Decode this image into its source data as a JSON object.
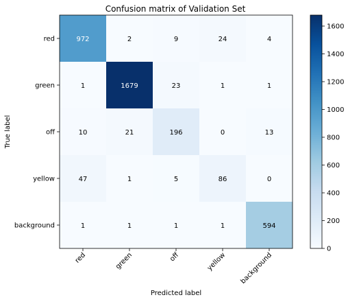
{
  "chart_data": {
    "type": "heatmap",
    "title": "Confusion matrix of Validation Set",
    "xlabel": "Predicted label",
    "ylabel": "True label",
    "x_categories": [
      "red",
      "green",
      "off",
      "yellow",
      "background"
    ],
    "y_categories": [
      "red",
      "green",
      "off",
      "yellow",
      "background"
    ],
    "values": [
      [
        972,
        2,
        9,
        24,
        4
      ],
      [
        1,
        1679,
        23,
        1,
        1
      ],
      [
        10,
        21,
        196,
        0,
        13
      ],
      [
        47,
        1,
        5,
        86,
        0
      ],
      [
        1,
        1,
        1,
        1,
        594
      ]
    ],
    "colormap": "Blues",
    "colorbar": {
      "min": 0,
      "max": 1679,
      "ticks": [
        0,
        200,
        400,
        600,
        800,
        1000,
        1200,
        1400,
        1600
      ]
    },
    "grid": false
  },
  "colors": {
    "low": "#f7fbff",
    "high": "#08306b",
    "text_dark": "#000000",
    "text_light": "#ffffff"
  }
}
